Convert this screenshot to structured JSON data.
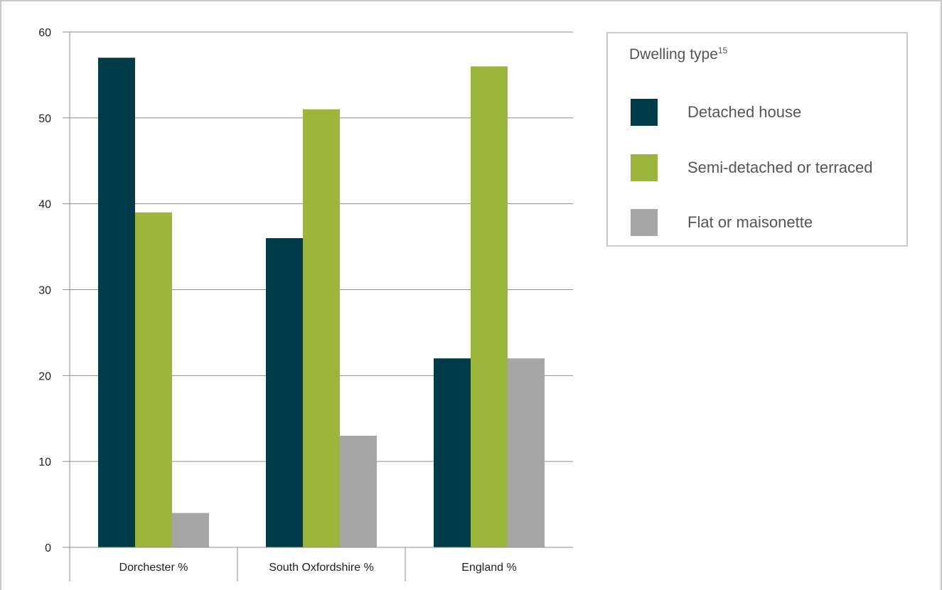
{
  "chart_data": {
    "type": "bar",
    "categories": [
      "Dorchester %",
      "South Oxfordshire %",
      "England %"
    ],
    "series": [
      {
        "name": "Detached house",
        "values": [
          57,
          36,
          22
        ],
        "color": "#003b4a"
      },
      {
        "name": "Semi-detached or terraced",
        "values": [
          39,
          51,
          56
        ],
        "color": "#9cb53c"
      },
      {
        "name": "Flat or maisonette",
        "values": [
          4,
          13,
          22
        ],
        "color": "#a6a6a6"
      }
    ],
    "ylim": [
      0,
      60
    ],
    "yticks": [
      0,
      10,
      20,
      30,
      40,
      50,
      60
    ],
    "grid": true,
    "legend": {
      "title": "Dwelling type",
      "title_superscript": "15",
      "position": "right"
    }
  }
}
